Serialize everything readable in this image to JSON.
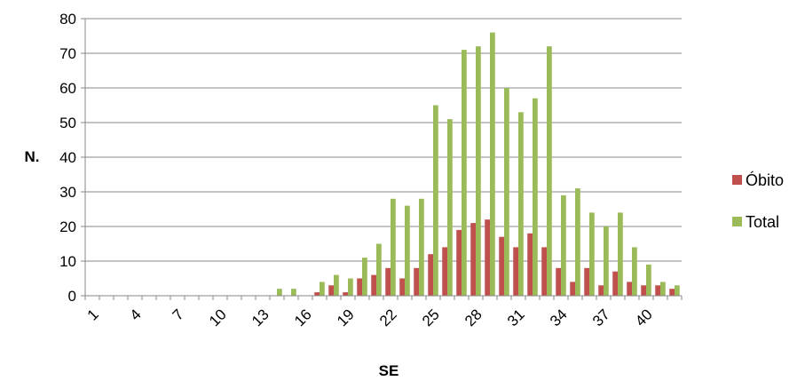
{
  "chart_data": {
    "type": "bar",
    "title": "",
    "xlabel": "SE",
    "ylabel": "N.",
    "ylim": [
      0,
      80
    ],
    "y_ticks": [
      "0",
      "10",
      "20",
      "30",
      "40",
      "50",
      "60",
      "70",
      "80"
    ],
    "categories": [
      1,
      2,
      3,
      4,
      5,
      6,
      7,
      8,
      9,
      10,
      11,
      12,
      13,
      14,
      15,
      16,
      17,
      18,
      19,
      20,
      21,
      22,
      23,
      24,
      25,
      26,
      27,
      28,
      29,
      30,
      31,
      32,
      33,
      34,
      35,
      36,
      37,
      38,
      39,
      40,
      41,
      42
    ],
    "x_tick_labels": [
      "1",
      "4",
      "7",
      "10",
      "13",
      "16",
      "19",
      "22",
      "25",
      "28",
      "31",
      "34",
      "37",
      "40"
    ],
    "x_tick_every": 3,
    "grid": true,
    "legend_position": "right",
    "series": [
      {
        "name": "Óbito",
        "color": "#c0504d",
        "values": [
          0,
          0,
          0,
          0,
          0,
          0,
          0,
          0,
          0,
          0,
          0,
          0,
          0,
          0,
          0,
          0,
          1,
          3,
          1,
          5,
          6,
          8,
          5,
          8,
          12,
          14,
          19,
          21,
          22,
          17,
          14,
          18,
          14,
          8,
          4,
          8,
          3,
          7,
          4,
          3,
          3,
          2
        ]
      },
      {
        "name": "Total",
        "color": "#9bbb59",
        "values": [
          0,
          0,
          0,
          0,
          0,
          0,
          0,
          0,
          0,
          0,
          0,
          0,
          0,
          2,
          2,
          0,
          4,
          6,
          5,
          11,
          15,
          28,
          26,
          28,
          55,
          51,
          71,
          72,
          76,
          60,
          53,
          57,
          72,
          29,
          31,
          24,
          20,
          24,
          14,
          9,
          4,
          3
        ]
      }
    ]
  }
}
